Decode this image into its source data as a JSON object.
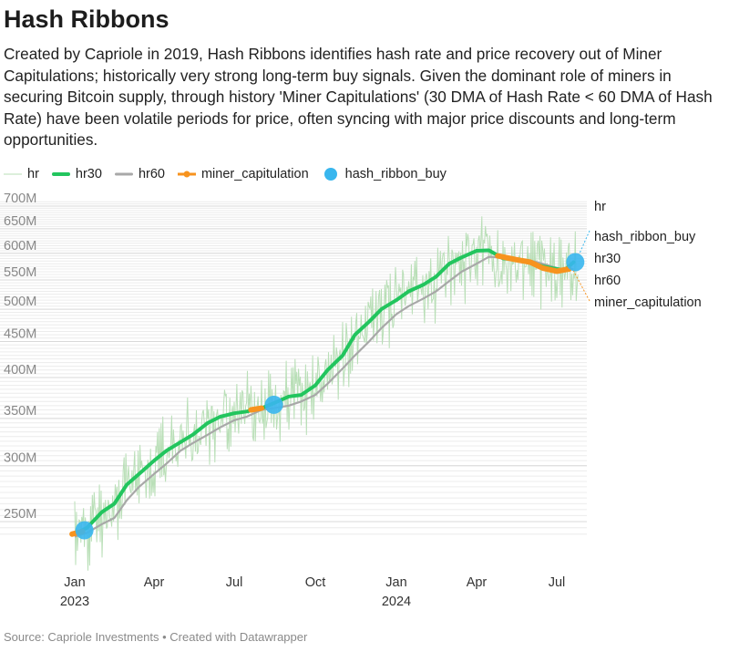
{
  "title": "Hash Ribbons",
  "description": "Created by Capriole in 2019, Hash Ribbons identifies hash rate and price recovery out of Miner Capitulations; historically very strong long-term buy signals. Given the dominant role of miners in securing Bitcoin supply, through history 'Miner Capitulations' (30 DMA of Hash Rate < 60 DMA of Hash Rate) have been volatile periods for price, often syncing with major price discounts and long-term opportunities.",
  "source": "Source: Capriole Investments • Created with Datawrapper",
  "colors": {
    "hr": "#b9dfb7",
    "hr30": "#22c55e",
    "hr60": "#a8a8a8",
    "miner_capitulation": "#f7931e",
    "hash_ribbon_buy": "#38b6ee"
  },
  "legend": [
    {
      "key": "hr",
      "label": "hr"
    },
    {
      "key": "hr30",
      "label": "hr30"
    },
    {
      "key": "hr60",
      "label": "hr60"
    },
    {
      "key": "miner_capitulation",
      "label": "miner_capitulation"
    },
    {
      "key": "hash_ribbon_buy",
      "label": "hash_ribbon_buy"
    }
  ],
  "chart_data": {
    "type": "line",
    "title": "Hash Ribbons",
    "xlabel": "",
    "ylabel": "",
    "y_scale": "log",
    "ylim": [
      "2023-01-01",
      "2024-07-31"
    ],
    "xlim": [
      "2023-01-01",
      "2024-07-31"
    ],
    "grid": true,
    "legend_position": "top-left",
    "y_ticks": [
      {
        "value": 250,
        "label": "250M"
      },
      {
        "value": 300,
        "label": "300M"
      },
      {
        "value": 350,
        "label": "350M"
      },
      {
        "value": 400,
        "label": "400M"
      },
      {
        "value": 450,
        "label": "450M"
      },
      {
        "value": 500,
        "label": "500M"
      },
      {
        "value": 550,
        "label": "550M"
      },
      {
        "value": 600,
        "label": "600M"
      },
      {
        "value": 650,
        "label": "650M"
      },
      {
        "value": 700,
        "label": "700M"
      }
    ],
    "x_ticks": [
      {
        "date": "2023-01-01",
        "label": "Jan",
        "year": "2023"
      },
      {
        "date": "2023-04-01",
        "label": "Apr"
      },
      {
        "date": "2023-07-01",
        "label": "Jul"
      },
      {
        "date": "2023-10-01",
        "label": "Oct"
      },
      {
        "date": "2024-01-01",
        "label": "Jan",
        "year": "2024"
      },
      {
        "date": "2024-04-01",
        "label": "Apr"
      },
      {
        "date": "2024-07-01",
        "label": "Jul"
      }
    ],
    "series": [
      {
        "name": "hr30",
        "points": [
          [
            "2023-01-01",
            240
          ],
          [
            "2023-01-15",
            245
          ],
          [
            "2023-02-01",
            258
          ],
          [
            "2023-02-15",
            265
          ],
          [
            "2023-03-01",
            282
          ],
          [
            "2023-03-15",
            292
          ],
          [
            "2023-04-01",
            305
          ],
          [
            "2023-04-15",
            315
          ],
          [
            "2023-05-01",
            324
          ],
          [
            "2023-05-15",
            332
          ],
          [
            "2023-06-01",
            345
          ],
          [
            "2023-06-15",
            352
          ],
          [
            "2023-07-01",
            356
          ],
          [
            "2023-07-15",
            358
          ],
          [
            "2023-08-01",
            362
          ],
          [
            "2023-08-15",
            368
          ],
          [
            "2023-09-01",
            376
          ],
          [
            "2023-09-15",
            378
          ],
          [
            "2023-10-01",
            390
          ],
          [
            "2023-10-15",
            410
          ],
          [
            "2023-11-01",
            430
          ],
          [
            "2023-11-15",
            460
          ],
          [
            "2023-12-01",
            480
          ],
          [
            "2023-12-15",
            500
          ],
          [
            "2024-01-01",
            515
          ],
          [
            "2024-01-15",
            530
          ],
          [
            "2024-02-01",
            542
          ],
          [
            "2024-02-15",
            556
          ],
          [
            "2024-03-01",
            580
          ],
          [
            "2024-03-15",
            592
          ],
          [
            "2024-04-01",
            605
          ],
          [
            "2024-04-15",
            606
          ],
          [
            "2024-05-01",
            590
          ],
          [
            "2024-05-15",
            588
          ],
          [
            "2024-06-01",
            582
          ],
          [
            "2024-06-15",
            575
          ],
          [
            "2024-07-01",
            570
          ],
          [
            "2024-07-10",
            568
          ],
          [
            "2024-07-20",
            583
          ]
        ]
      },
      {
        "name": "hr60",
        "points": [
          [
            "2023-01-01",
            238
          ],
          [
            "2023-01-15",
            241
          ],
          [
            "2023-02-01",
            248
          ],
          [
            "2023-02-15",
            253
          ],
          [
            "2023-03-01",
            268
          ],
          [
            "2023-03-15",
            280
          ],
          [
            "2023-04-01",
            292
          ],
          [
            "2023-04-15",
            302
          ],
          [
            "2023-05-01",
            315
          ],
          [
            "2023-05-15",
            323
          ],
          [
            "2023-06-01",
            332
          ],
          [
            "2023-06-15",
            340
          ],
          [
            "2023-07-01",
            348
          ],
          [
            "2023-07-15",
            352
          ],
          [
            "2023-08-01",
            360
          ],
          [
            "2023-08-15",
            362
          ],
          [
            "2023-09-01",
            365
          ],
          [
            "2023-09-15",
            370
          ],
          [
            "2023-10-01",
            378
          ],
          [
            "2023-10-15",
            392
          ],
          [
            "2023-11-01",
            412
          ],
          [
            "2023-11-15",
            430
          ],
          [
            "2023-12-01",
            450
          ],
          [
            "2023-12-15",
            470
          ],
          [
            "2024-01-01",
            492
          ],
          [
            "2024-01-15",
            505
          ],
          [
            "2024-02-01",
            518
          ],
          [
            "2024-02-15",
            530
          ],
          [
            "2024-03-01",
            548
          ],
          [
            "2024-03-15",
            565
          ],
          [
            "2024-04-01",
            580
          ],
          [
            "2024-04-15",
            593
          ],
          [
            "2024-05-01",
            592
          ],
          [
            "2024-05-15",
            588
          ],
          [
            "2024-06-01",
            586
          ],
          [
            "2024-06-15",
            580
          ],
          [
            "2024-07-01",
            572
          ],
          [
            "2024-07-10",
            568
          ],
          [
            "2024-07-20",
            570
          ]
        ]
      },
      {
        "name": "miner_capitulation",
        "segments": [
          [
            [
              "2022-12-29",
              240
            ],
            [
              "2023-01-10",
              242
            ]
          ],
          [
            [
              "2023-07-20",
              360
            ],
            [
              "2023-08-01",
              362
            ]
          ],
          [
            [
              "2024-04-25",
              595
            ],
            [
              "2024-05-15",
              588
            ],
            [
              "2024-06-01",
              583
            ],
            [
              "2024-06-15",
              572
            ],
            [
              "2024-07-01",
              566
            ],
            [
              "2024-07-15",
              570
            ]
          ]
        ]
      },
      {
        "name": "hash_ribbon_buy",
        "points": [
          [
            "2023-01-12",
            243
          ],
          [
            "2023-08-15",
            366
          ],
          [
            "2024-07-22",
            583
          ]
        ]
      }
    ],
    "end_labels": [
      "hr",
      "hash_ribbon_buy",
      "hr30",
      "hr60",
      "miner_capitulation"
    ]
  }
}
